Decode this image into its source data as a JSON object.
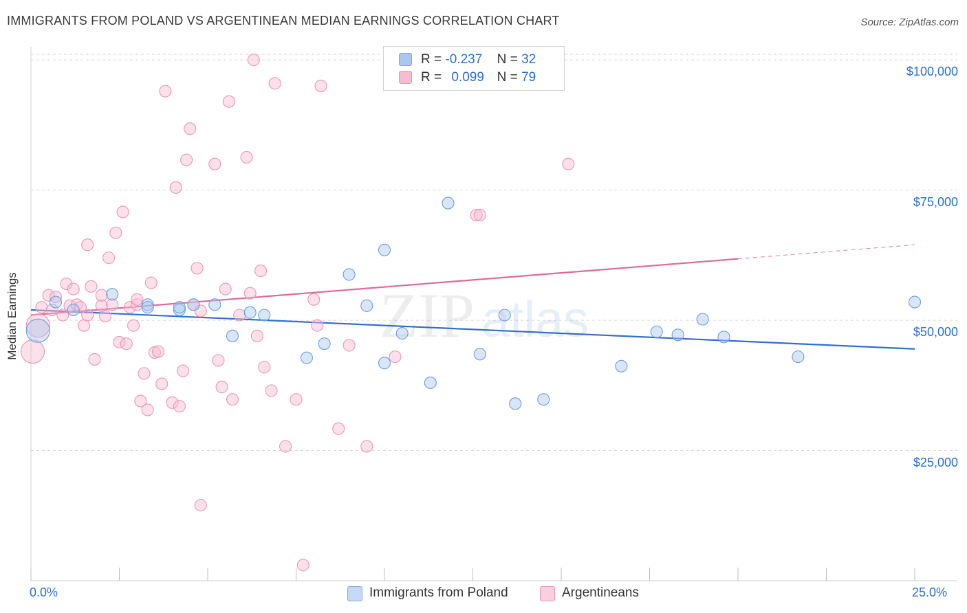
{
  "header": {
    "title": "IMMIGRANTS FROM POLAND VS ARGENTINEAN MEDIAN EARNINGS CORRELATION CHART",
    "source": "Source: ZipAtlas.com"
  },
  "watermark": {
    "part1": "ZIP",
    "part2": "atlas"
  },
  "legend": {
    "rows": [
      {
        "r_label": "R =",
        "r_value": "-0.237",
        "n_label": "N =",
        "n_value": "32",
        "color": "#a9c8f0",
        "border": "#7fa9e0"
      },
      {
        "r_label": "R =",
        "r_value": "0.099",
        "n_label": "N =",
        "n_value": "79",
        "color": "#f8bcd0",
        "border": "#ee94b4"
      }
    ]
  },
  "bottom_legend": [
    {
      "label": "Immigrants from Poland",
      "color": "#c5daf6",
      "border": "#7fa9e0"
    },
    {
      "label": "Argentineans",
      "color": "#fbd0de",
      "border": "#ee94b4"
    }
  ],
  "chart_data": {
    "type": "scatter",
    "title": "IMMIGRANTS FROM POLAND VS ARGENTINEAN MEDIAN EARNINGS CORRELATION CHART",
    "xlabel": "",
    "ylabel": "Median Earnings",
    "xlim": [
      0,
      25
    ],
    "ylim": [
      0,
      102000
    ],
    "x_tick_labels": [
      "0.0%",
      "25.0%"
    ],
    "y_ticks": [
      25000,
      50000,
      75000,
      100000
    ],
    "y_tick_labels": [
      "$25,000",
      "$50,000",
      "$75,000",
      "$100,000"
    ],
    "grid": "horizontal dashed",
    "legend_position": "top-center",
    "series": [
      {
        "name": "Immigrants from Poland",
        "color": "#6a9ee0",
        "fill": "rgba(169,200,240,0.45)",
        "trend": {
          "x": [
            0,
            25
          ],
          "y": [
            52000,
            44500
          ],
          "color": "#2f6fd0"
        },
        "points": [
          {
            "x": 0.2,
            "y": 48000,
            "big": true
          },
          {
            "x": 0.7,
            "y": 53500
          },
          {
            "x": 1.2,
            "y": 52000
          },
          {
            "x": 2.3,
            "y": 55000
          },
          {
            "x": 3.3,
            "y": 53000
          },
          {
            "x": 3.3,
            "y": 52500
          },
          {
            "x": 4.2,
            "y": 52000
          },
          {
            "x": 4.6,
            "y": 53000
          },
          {
            "x": 5.2,
            "y": 53000
          },
          {
            "x": 6.2,
            "y": 51500
          },
          {
            "x": 4.2,
            "y": 52500
          },
          {
            "x": 5.7,
            "y": 47000
          },
          {
            "x": 6.6,
            "y": 51000
          },
          {
            "x": 7.8,
            "y": 42800
          },
          {
            "x": 8.3,
            "y": 45500
          },
          {
            "x": 9.0,
            "y": 58800
          },
          {
            "x": 9.5,
            "y": 52800
          },
          {
            "x": 10.0,
            "y": 41800
          },
          {
            "x": 10.5,
            "y": 47500
          },
          {
            "x": 10.0,
            "y": 63500
          },
          {
            "x": 11.3,
            "y": 38000
          },
          {
            "x": 11.8,
            "y": 72500
          },
          {
            "x": 12.7,
            "y": 43500
          },
          {
            "x": 13.4,
            "y": 51000
          },
          {
            "x": 13.7,
            "y": 34000
          },
          {
            "x": 14.5,
            "y": 34800
          },
          {
            "x": 16.7,
            "y": 41200
          },
          {
            "x": 17.7,
            "y": 47800
          },
          {
            "x": 18.3,
            "y": 47200
          },
          {
            "x": 19.0,
            "y": 50200
          },
          {
            "x": 19.6,
            "y": 46800
          },
          {
            "x": 21.7,
            "y": 43000
          },
          {
            "x": 25.0,
            "y": 53500
          }
        ]
      },
      {
        "name": "Argentineans",
        "color": "#ee94b4",
        "fill": "rgba(248,188,208,0.45)",
        "trend": {
          "x": [
            0,
            20
          ],
          "y": [
            51000,
            61800
          ],
          "dashed_to": [
            25,
            64500
          ],
          "color": "#e06a98"
        },
        "points": [
          {
            "x": 0.05,
            "y": 44000,
            "big": true
          },
          {
            "x": 0.2,
            "y": 49000,
            "big": true
          },
          {
            "x": 0.3,
            "y": 52500
          },
          {
            "x": 0.5,
            "y": 54800
          },
          {
            "x": 0.6,
            "y": 52000
          },
          {
            "x": 0.7,
            "y": 54500
          },
          {
            "x": 0.9,
            "y": 51000
          },
          {
            "x": 1.0,
            "y": 57000
          },
          {
            "x": 1.1,
            "y": 52800
          },
          {
            "x": 1.2,
            "y": 56000
          },
          {
            "x": 1.3,
            "y": 53000
          },
          {
            "x": 1.4,
            "y": 52500
          },
          {
            "x": 1.5,
            "y": 49000
          },
          {
            "x": 1.6,
            "y": 64500
          },
          {
            "x": 1.6,
            "y": 51000
          },
          {
            "x": 1.7,
            "y": 56500
          },
          {
            "x": 1.8,
            "y": 42500
          },
          {
            "x": 2.0,
            "y": 52800
          },
          {
            "x": 2.0,
            "y": 54800
          },
          {
            "x": 2.1,
            "y": 50800
          },
          {
            "x": 2.2,
            "y": 62000
          },
          {
            "x": 2.3,
            "y": 53000
          },
          {
            "x": 2.4,
            "y": 66800
          },
          {
            "x": 2.5,
            "y": 45800
          },
          {
            "x": 2.6,
            "y": 70800
          },
          {
            "x": 2.7,
            "y": 45500
          },
          {
            "x": 2.8,
            "y": 52500
          },
          {
            "x": 2.9,
            "y": 49000
          },
          {
            "x": 3.0,
            "y": 53000
          },
          {
            "x": 3.0,
            "y": 54000
          },
          {
            "x": 3.1,
            "y": 34500
          },
          {
            "x": 3.2,
            "y": 39800
          },
          {
            "x": 3.3,
            "y": 32800
          },
          {
            "x": 3.4,
            "y": 57200
          },
          {
            "x": 3.5,
            "y": 43800
          },
          {
            "x": 3.6,
            "y": 44000
          },
          {
            "x": 3.7,
            "y": 37800
          },
          {
            "x": 3.8,
            "y": 94000
          },
          {
            "x": 4.0,
            "y": 34200
          },
          {
            "x": 4.1,
            "y": 75500
          },
          {
            "x": 4.2,
            "y": 33500
          },
          {
            "x": 4.3,
            "y": 40300
          },
          {
            "x": 4.4,
            "y": 80800
          },
          {
            "x": 4.5,
            "y": 86800
          },
          {
            "x": 4.6,
            "y": 53000
          },
          {
            "x": 4.7,
            "y": 60000
          },
          {
            "x": 4.8,
            "y": 51800
          },
          {
            "x": 4.8,
            "y": 14500
          },
          {
            "x": 5.2,
            "y": 80000
          },
          {
            "x": 5.3,
            "y": 42300
          },
          {
            "x": 5.4,
            "y": 37200
          },
          {
            "x": 5.5,
            "y": 56000
          },
          {
            "x": 5.6,
            "y": 92000
          },
          {
            "x": 5.7,
            "y": 34800
          },
          {
            "x": 5.9,
            "y": 51000
          },
          {
            "x": 6.1,
            "y": 81300
          },
          {
            "x": 6.2,
            "y": 55200
          },
          {
            "x": 6.3,
            "y": 100000
          },
          {
            "x": 6.4,
            "y": 47000
          },
          {
            "x": 6.5,
            "y": 59500
          },
          {
            "x": 6.6,
            "y": 41000
          },
          {
            "x": 6.8,
            "y": 36500
          },
          {
            "x": 6.9,
            "y": 95500
          },
          {
            "x": 7.2,
            "y": 25800
          },
          {
            "x": 7.5,
            "y": 34800
          },
          {
            "x": 7.7,
            "y": 3000
          },
          {
            "x": 8.0,
            "y": 54000
          },
          {
            "x": 8.1,
            "y": 49000
          },
          {
            "x": 8.2,
            "y": 95000
          },
          {
            "x": 8.7,
            "y": 29200
          },
          {
            "x": 9.0,
            "y": 45200
          },
          {
            "x": 9.5,
            "y": 25800
          },
          {
            "x": 10.3,
            "y": 43000
          },
          {
            "x": 12.6,
            "y": 70200
          },
          {
            "x": 12.7,
            "y": 70200
          },
          {
            "x": 15.2,
            "y": 80000
          }
        ]
      }
    ]
  }
}
